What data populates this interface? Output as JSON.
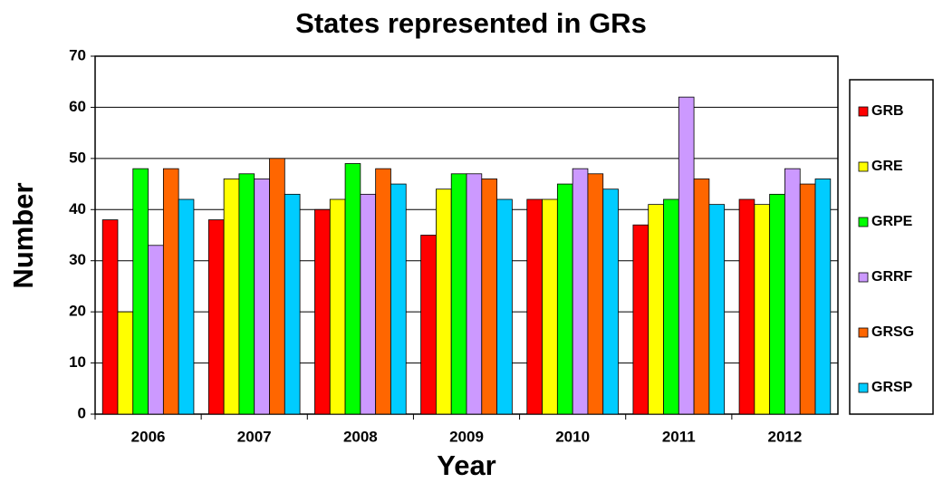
{
  "chart_data": {
    "type": "bar",
    "title": "States represented in GRs",
    "x_label": "Year",
    "y_label": "Number",
    "categories": [
      "2006",
      "2007",
      "2008",
      "2009",
      "2010",
      "2011",
      "2012"
    ],
    "series": [
      {
        "name": "GRB",
        "color": "#ff0000",
        "values": [
          38,
          38,
          40,
          35,
          42,
          37,
          42
        ]
      },
      {
        "name": "GRE",
        "color": "#ffff00",
        "values": [
          20,
          46,
          42,
          44,
          42,
          41,
          41
        ]
      },
      {
        "name": "GRPE",
        "color": "#00ff00",
        "values": [
          48,
          47,
          49,
          47,
          45,
          42,
          43
        ]
      },
      {
        "name": "GRRF",
        "color": "#cc99ff",
        "values": [
          33,
          46,
          43,
          47,
          48,
          62,
          48
        ]
      },
      {
        "name": "GRSG",
        "color": "#ff6600",
        "values": [
          48,
          50,
          48,
          46,
          47,
          46,
          45
        ]
      },
      {
        "name": "GRSP",
        "color": "#00ccff",
        "values": [
          42,
          43,
          45,
          42,
          44,
          41,
          46
        ]
      }
    ],
    "ylim": [
      0,
      70
    ],
    "yticks": [
      0,
      10,
      20,
      30,
      40,
      50,
      60,
      70
    ],
    "grid": true,
    "legend": "right"
  }
}
